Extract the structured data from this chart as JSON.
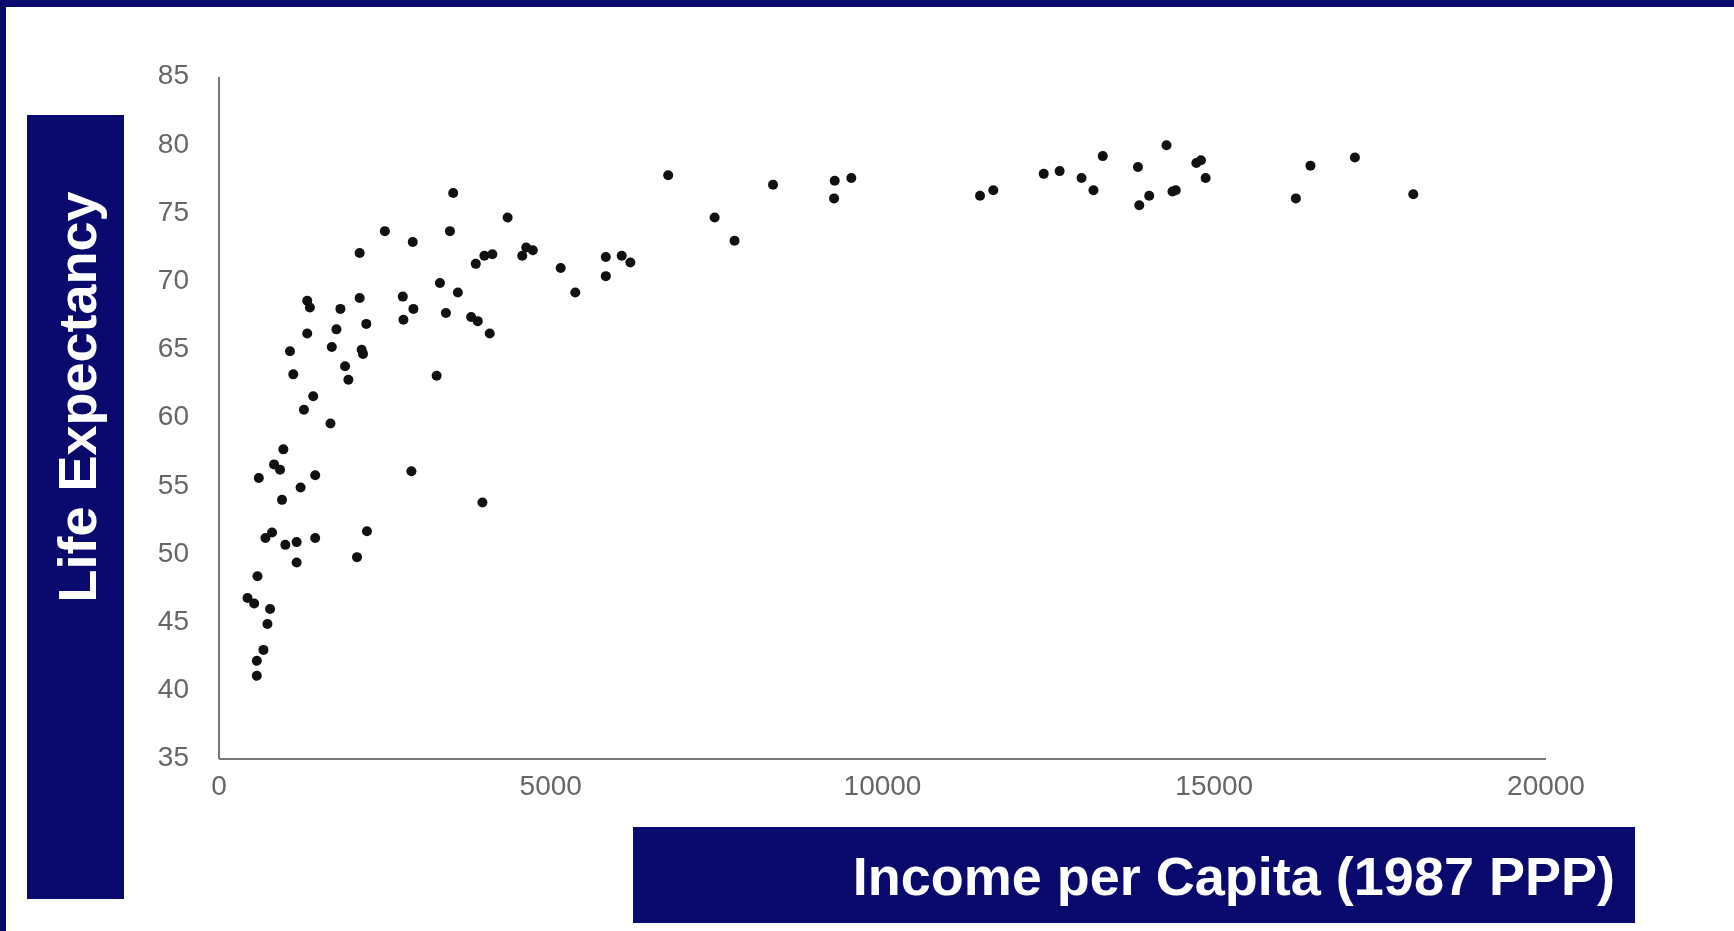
{
  "chart_data": {
    "type": "scatter",
    "xlabel": "Income per Capita (1987 PPP)",
    "ylabel": "Life Expectancy",
    "xlim": [
      0,
      20000
    ],
    "ylim": [
      35,
      85
    ],
    "xticks": [
      0,
      5000,
      10000,
      15000,
      20000
    ],
    "yticks": [
      35,
      40,
      45,
      50,
      55,
      60,
      65,
      70,
      75,
      80,
      85
    ],
    "marker": "circle",
    "grid": false,
    "series": [
      {
        "color": "#111111",
        "x": [
          430,
          530,
          570,
          570,
          580,
          600,
          670,
          700,
          730,
          770,
          800,
          830,
          920,
          950,
          970,
          1000,
          1070,
          1120,
          1170,
          1170,
          1230,
          1280,
          1330,
          1330,
          1370,
          1420,
          1450,
          1450,
          1680,
          1700,
          1770,
          1830,
          1900,
          1950,
          2080,
          2230,
          2120,
          2150,
          2170,
          2220,
          2120,
          2500,
          2770,
          2780,
          2900,
          2920,
          2930,
          3280,
          3330,
          3420,
          3480,
          3530,
          3600,
          3800,
          3870,
          3900,
          3970,
          4000,
          4080,
          4120,
          4350,
          4570,
          4630,
          4730,
          5150,
          5370,
          5830,
          5830,
          6070,
          6200,
          6770,
          7470,
          7770,
          8350,
          9270,
          9280,
          9530,
          11470,
          11670,
          12430,
          12670,
          13000,
          13180,
          13320,
          13850,
          13870,
          14020,
          14280,
          14370,
          14420,
          14730,
          14800,
          14870,
          16230,
          16450,
          17120,
          18000
        ],
        "values": [
          46.8,
          46.4,
          42.2,
          41.1,
          48.4,
          55.6,
          43.0,
          51.2,
          44.9,
          46.0,
          51.6,
          56.6,
          56.2,
          54.0,
          57.7,
          50.7,
          64.9,
          63.2,
          50.9,
          49.4,
          54.9,
          60.6,
          66.2,
          68.6,
          68.1,
          61.6,
          55.8,
          51.2,
          59.6,
          65.2,
          66.5,
          68.0,
          63.8,
          62.8,
          49.8,
          51.7,
          68.8,
          65.0,
          64.7,
          66.9,
          72.1,
          73.7,
          68.9,
          67.2,
          56.1,
          72.9,
          68.0,
          63.1,
          69.9,
          67.7,
          73.7,
          76.5,
          69.2,
          67.4,
          71.3,
          67.1,
          53.8,
          71.9,
          66.2,
          72.0,
          74.7,
          71.9,
          72.5,
          72.3,
          71.0,
          69.2,
          70.4,
          71.8,
          71.9,
          71.4,
          77.8,
          74.7,
          73.0,
          77.1,
          76.1,
          77.4,
          77.6,
          76.3,
          76.7,
          77.9,
          78.1,
          77.6,
          76.7,
          79.2,
          78.4,
          75.6,
          76.3,
          80.0,
          76.6,
          76.7,
          78.7,
          78.9,
          77.6,
          76.1,
          78.5,
          79.1,
          76.4
        ]
      }
    ]
  }
}
